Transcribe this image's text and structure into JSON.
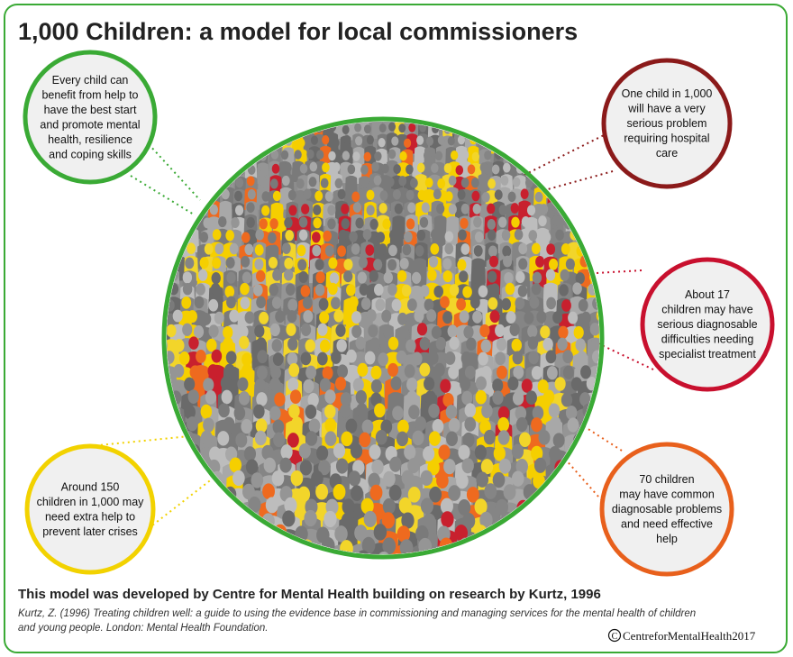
{
  "header": {
    "title": "1,000 Children: a model for local commissioners"
  },
  "callouts": [
    {
      "lines": [
        "Every child can",
        "benefit from help to",
        "have the best start",
        "and promote mental",
        "health, resilience",
        "and coping skills"
      ]
    },
    {
      "lines": [
        "One child in 1,000",
        "will have a very",
        "serious problem",
        "requiring hospital",
        "care"
      ]
    },
    {
      "lines": [
        "About 17",
        "children may have",
        "serious diagnosable",
        "difficulties needing",
        "specialist treatment"
      ]
    },
    {
      "lines": [
        "Around 150",
        "children in 1,000 may",
        "need extra help to",
        "prevent later crises"
      ]
    },
    {
      "lines": [
        "70 children",
        "may have common",
        "diagnosable problems",
        "and need effective",
        "help"
      ]
    }
  ],
  "footer": {
    "note": "This model was developed by Centre for Mental Health building on research by Kurtz, 1996",
    "citation": [
      "Kurtz, Z. (1996) Treating children well: a guide to using the evidence base in commissioning and managing services for the mental health of children",
      "and young people. London: Mental Health Foundation."
    ],
    "copyright": "CentreforMentalHealth2017"
  }
}
